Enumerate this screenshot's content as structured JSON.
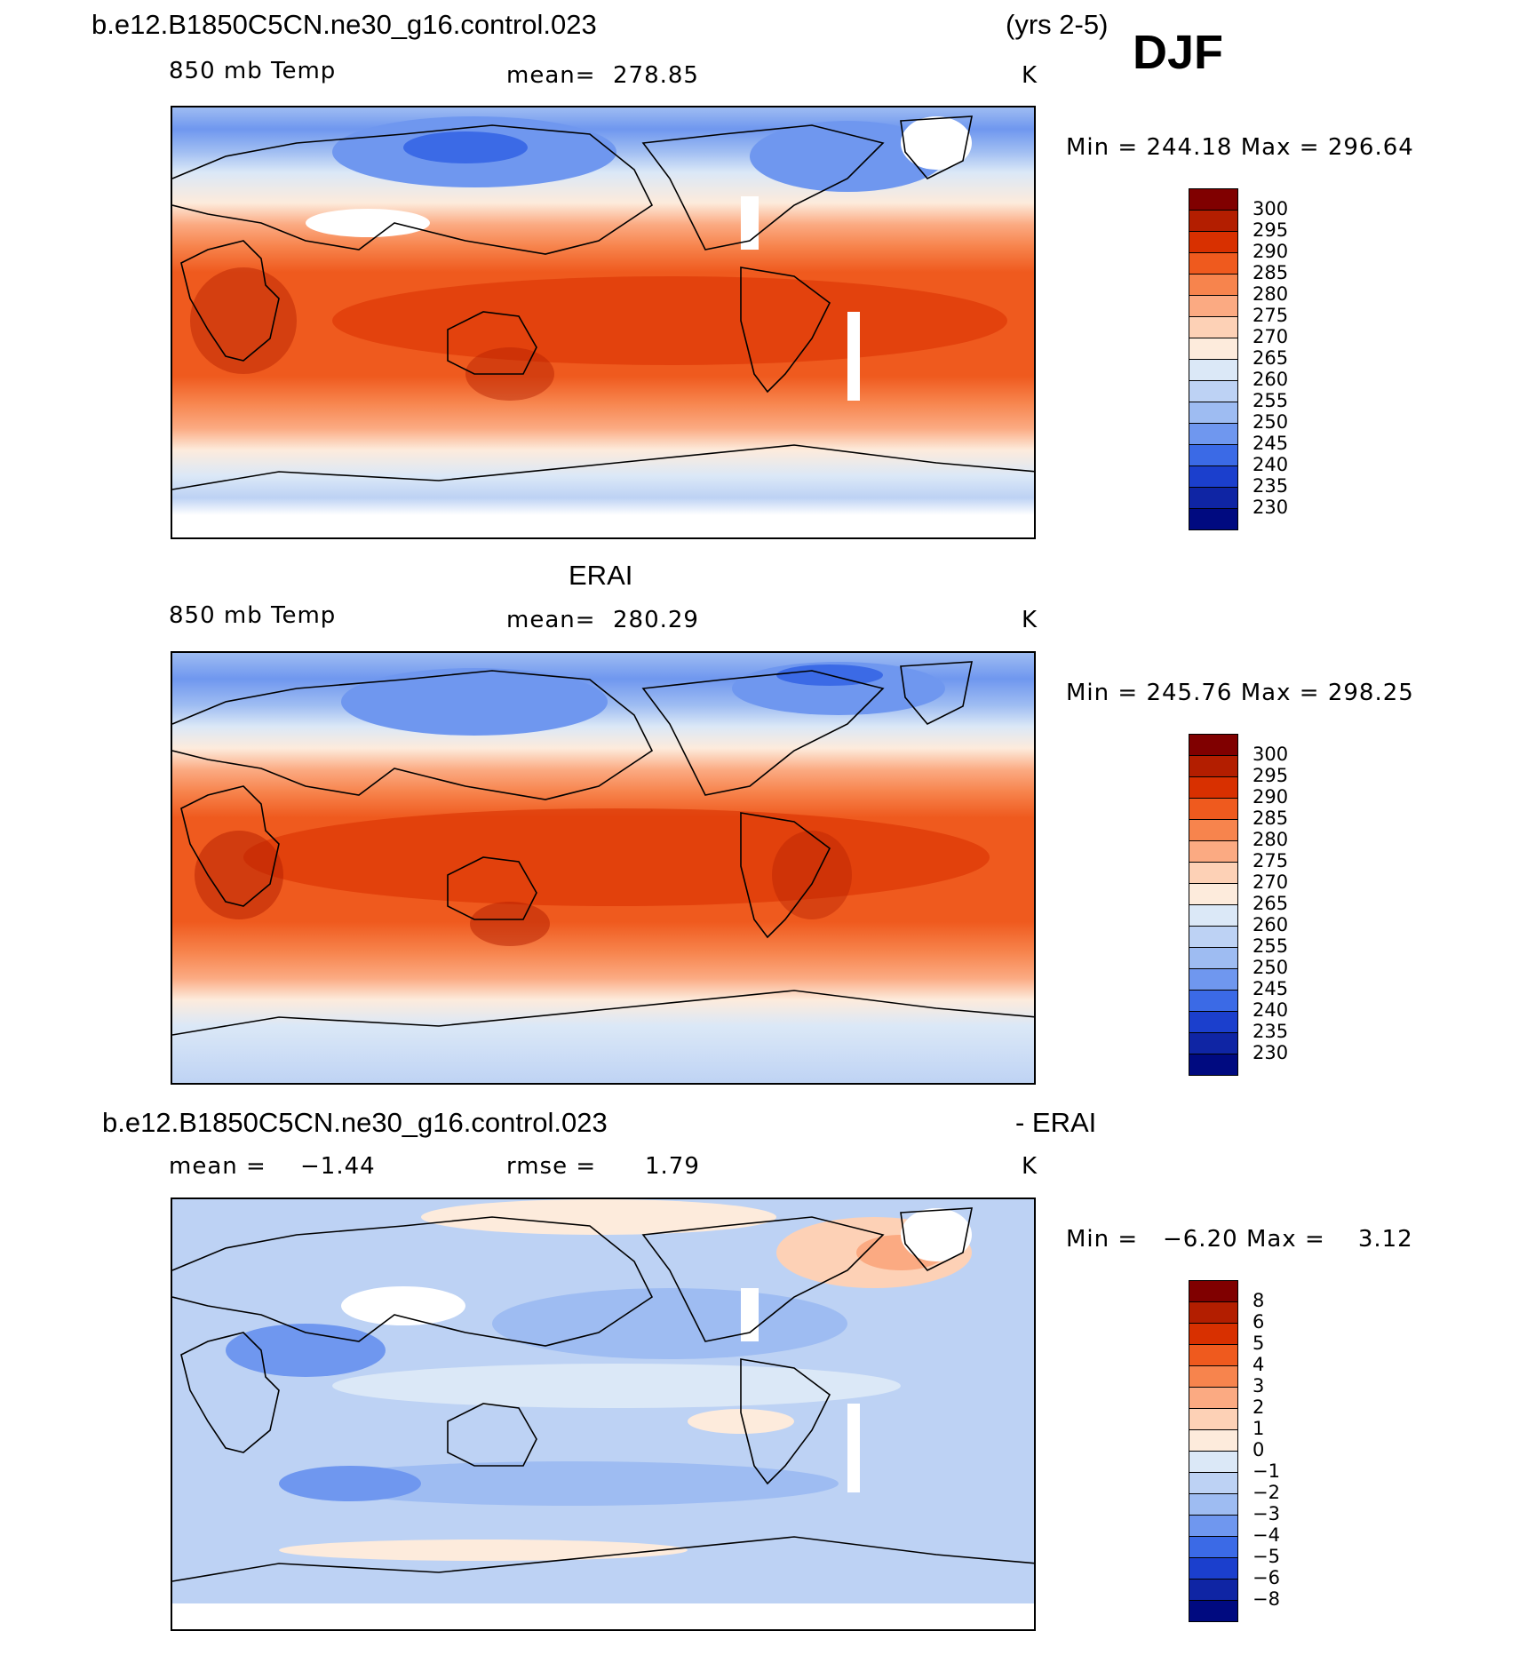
{
  "header": {
    "case_name": "b.e12.B1850C5CN.ne30_g16.control.023",
    "years": "(yrs 2-5)",
    "season": "DJF"
  },
  "panels": [
    {
      "id": "model",
      "title": "",
      "variable": "850 mb Temp",
      "stat_label": "mean=",
      "stat_value": "278.85",
      "stat2_label": "",
      "stat2_value": "",
      "units": "K",
      "min_label": "Min",
      "min_value": "244.18",
      "max_label": "Max",
      "max_value": "296.64",
      "legend_levels": [
        "300",
        "295",
        "290",
        "285",
        "280",
        "275",
        "270",
        "265",
        "260",
        "255",
        "250",
        "245",
        "240",
        "235",
        "230"
      ]
    },
    {
      "id": "obs",
      "title": "ERAI",
      "variable": "850 mb Temp",
      "stat_label": "mean=",
      "stat_value": "280.29",
      "stat2_label": "",
      "stat2_value": "",
      "units": "K",
      "min_label": "Min",
      "min_value": "245.76",
      "max_label": "Max",
      "max_value": "298.25",
      "legend_levels": [
        "300",
        "295",
        "290",
        "285",
        "280",
        "275",
        "270",
        "265",
        "260",
        "255",
        "250",
        "245",
        "240",
        "235",
        "230"
      ]
    },
    {
      "id": "diff",
      "title_left": "b.e12.B1850C5CN.ne30_g16.control.023",
      "title_right": "- ERAI",
      "variable": "",
      "stat_label": "mean =",
      "stat_value": "−1.44",
      "stat2_label": "rmse =",
      "stat2_value": "1.79",
      "units": "K",
      "min_label": "Min",
      "min_value": "−6.20",
      "max_label": "Max",
      "max_value": "3.12",
      "legend_levels": [
        "8",
        "6",
        "5",
        "4",
        "3",
        "2",
        "1",
        "0",
        "−1",
        "−2",
        "−3",
        "−4",
        "−5",
        "−6",
        "−8"
      ]
    }
  ],
  "colors": {
    "abs_scale": [
      "#800000",
      "#b31e00",
      "#d83000",
      "#ef5a1e",
      "#f7844d",
      "#fbaa82",
      "#fdd1b6",
      "#fdebdc",
      "#dbe8f7",
      "#bdd2f4",
      "#9ebcf2",
      "#6f97ef",
      "#3b6ae6",
      "#1b3fcd",
      "#0f25a4",
      "#000a80"
    ],
    "diff_scale": [
      "#800000",
      "#b31e00",
      "#d83000",
      "#ef5a1e",
      "#f7844d",
      "#fbaa82",
      "#fdd1b6",
      "#fdebdc",
      "#dbe8f7",
      "#bdd2f4",
      "#9ebcf2",
      "#6f97ef",
      "#3b6ae6",
      "#1b3fcd",
      "#0f25a4",
      "#000a80"
    ],
    "missing": "#ffffff",
    "coast": "#000000"
  }
}
